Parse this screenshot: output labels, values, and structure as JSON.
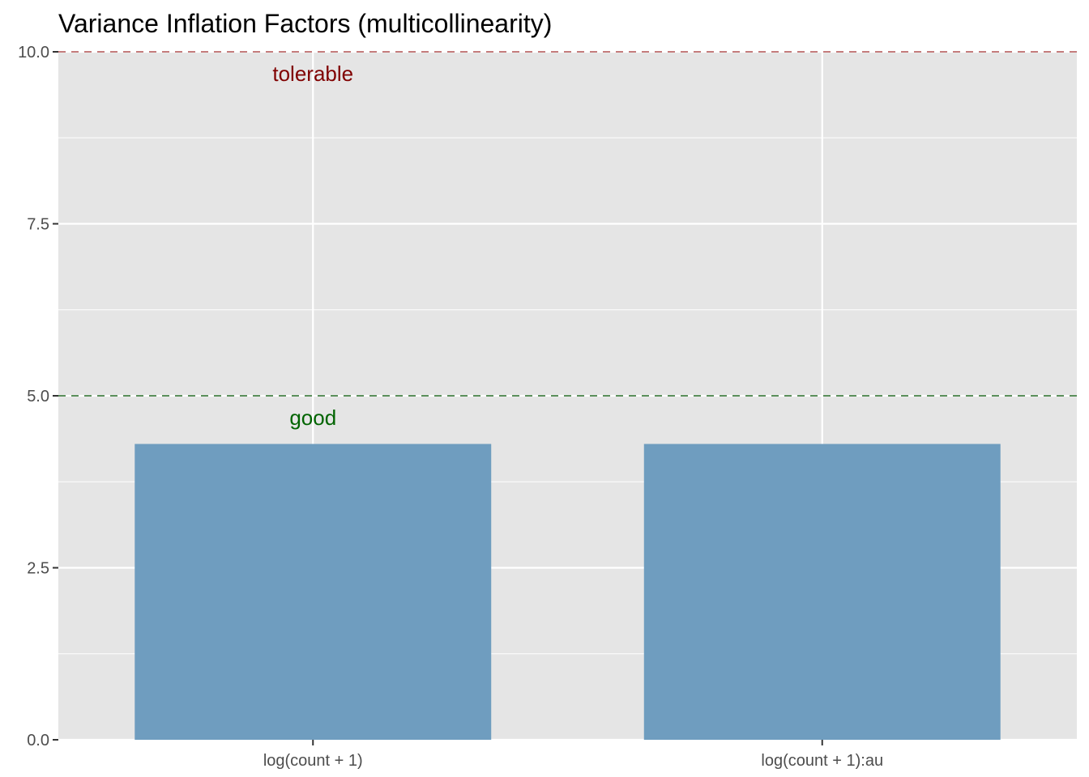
{
  "chart_data": {
    "type": "bar",
    "title": "Variance Inflation Factors (multicollinearity)",
    "xlabel": "",
    "ylabel": "",
    "categories": [
      "log(count + 1)",
      "log(count + 1):au"
    ],
    "values": [
      4.3,
      4.3
    ],
    "ylim": [
      0,
      10
    ],
    "yticks": [
      0,
      2.5,
      5,
      7.5,
      10
    ],
    "ytick_labels": [
      "0.0",
      "2.5",
      "5.0",
      "7.5",
      "10.0"
    ],
    "grid": true,
    "legend": "none",
    "bar_color": "#6f9dbf",
    "panel_color": "#e5e5e5",
    "reference_lines": [
      {
        "y": 5,
        "label": "good",
        "color": "#006400",
        "line_color": "#5b8f5b"
      },
      {
        "y": 10,
        "label": "tolerable",
        "color": "#800000",
        "line_color": "#c47c7c"
      }
    ]
  }
}
